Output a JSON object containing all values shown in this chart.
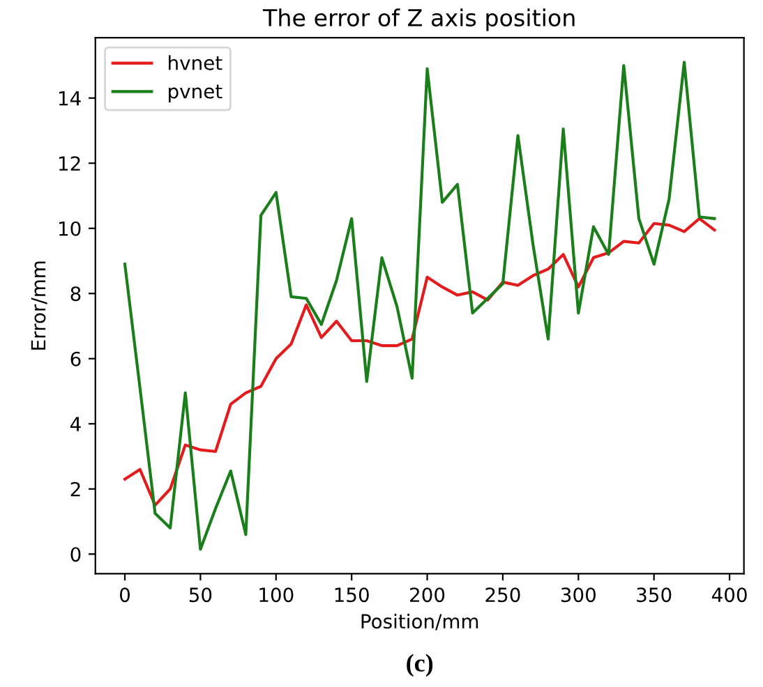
{
  "chart_data": {
    "type": "line",
    "title": "The error of Z axis position",
    "xlabel": "Position/mm",
    "ylabel": "Error/mm",
    "annotations": [
      "(c)"
    ],
    "x": [
      0,
      10,
      20,
      30,
      40,
      50,
      60,
      70,
      80,
      90,
      100,
      110,
      120,
      130,
      140,
      150,
      160,
      170,
      180,
      190,
      200,
      210,
      220,
      230,
      240,
      250,
      260,
      270,
      280,
      290,
      300,
      310,
      320,
      330,
      340,
      350,
      360,
      370,
      380,
      390
    ],
    "series": [
      {
        "name": "hvnet",
        "color": "#e41a1c",
        "values": [
          2.3,
          2.6,
          1.5,
          2.0,
          3.35,
          3.2,
          3.15,
          4.6,
          4.95,
          5.15,
          6.0,
          6.45,
          7.65,
          6.65,
          7.15,
          6.55,
          6.55,
          6.4,
          6.4,
          6.6,
          8.5,
          8.2,
          7.95,
          8.05,
          7.8,
          8.35,
          8.25,
          8.55,
          8.75,
          9.2,
          8.2,
          9.1,
          9.25,
          9.6,
          9.55,
          10.15,
          10.1,
          9.9,
          10.3,
          9.95
        ]
      },
      {
        "name": "pvnet",
        "color": "#1a7f1a",
        "values": [
          8.9,
          5.1,
          1.25,
          0.8,
          4.95,
          0.15,
          1.4,
          2.55,
          0.6,
          10.4,
          11.1,
          7.9,
          7.85,
          7.05,
          8.4,
          10.3,
          5.3,
          9.1,
          7.6,
          5.4,
          14.9,
          10.8,
          11.35,
          7.4,
          7.85,
          8.3,
          12.85,
          9.5,
          6.6,
          13.05,
          7.4,
          10.05,
          9.2,
          15.0,
          10.3,
          8.9,
          10.9,
          15.1,
          10.35,
          10.3
        ]
      }
    ],
    "xlim": [
      -19.5,
      409.5
    ],
    "ylim": [
      -0.6,
      15.85
    ],
    "xticks": [
      0,
      50,
      100,
      150,
      200,
      250,
      300,
      350,
      400
    ],
    "yticks": [
      0,
      2,
      4,
      6,
      8,
      10,
      12,
      14
    ],
    "grid": false,
    "legend": "top left",
    "marker": "none",
    "line_style": "solid"
  }
}
